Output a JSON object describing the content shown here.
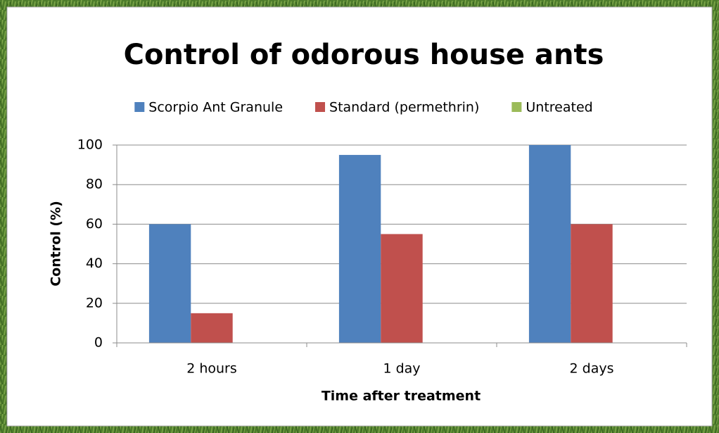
{
  "chart_data": {
    "type": "bar",
    "title": "Control of odorous house ants",
    "x_label": "Time after treatment",
    "y_label": "Control (%)",
    "categories": [
      "2 hours",
      "1 day",
      "2 days"
    ],
    "series": [
      {
        "name": "Scorpio Ant Granule",
        "color": "#4f81bd",
        "values": [
          60,
          95,
          100
        ]
      },
      {
        "name": "Standard (permethrin)",
        "color": "#c0504d",
        "values": [
          15,
          55,
          60
        ]
      },
      {
        "name": "Untreated",
        "color": "#9bbb59",
        "values": [
          0,
          0,
          0
        ]
      }
    ],
    "ylim": [
      0,
      100
    ],
    "yticks": [
      0,
      20,
      40,
      60,
      80,
      100
    ],
    "grid": true,
    "legend": "top"
  }
}
